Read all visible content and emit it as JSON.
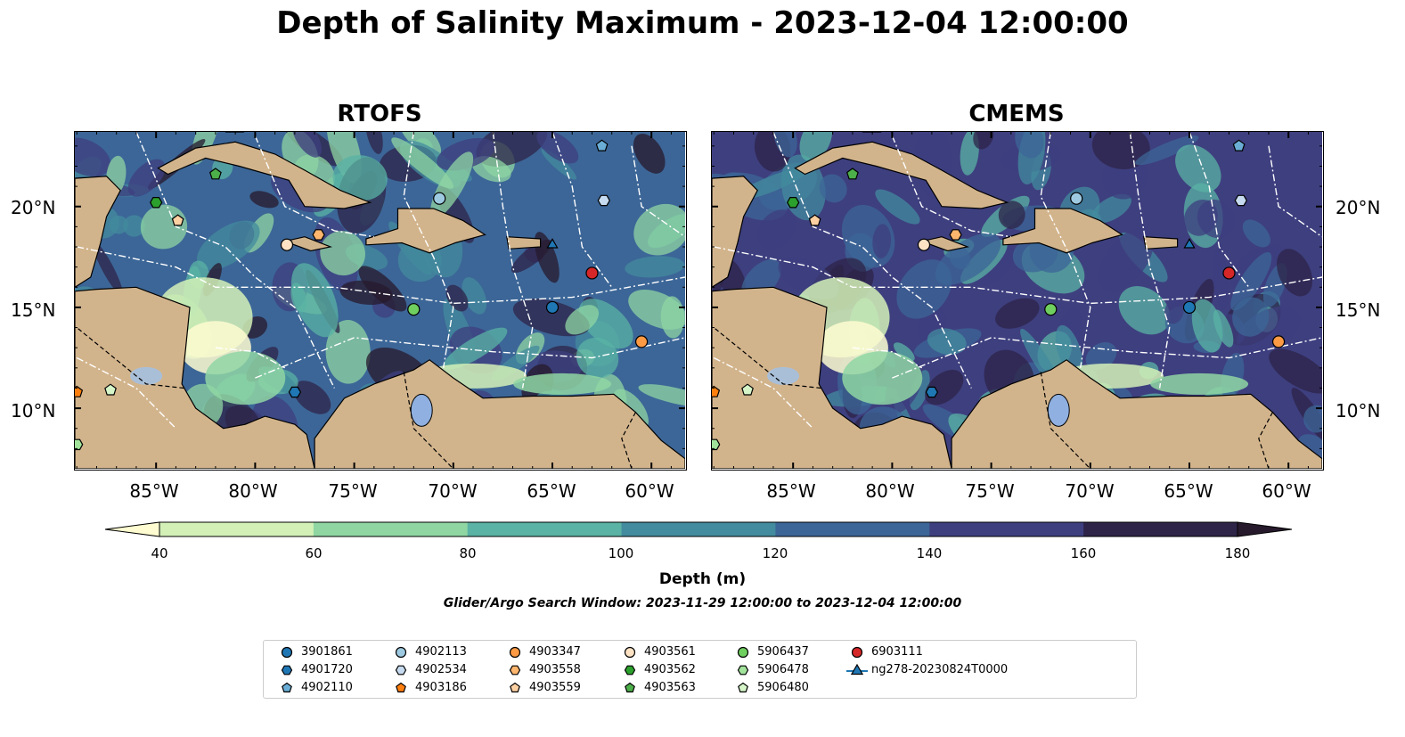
{
  "title": "Depth of Salinity Maximum - 2023-12-04 12:00:00",
  "panels": [
    {
      "title": "RTOFS"
    },
    {
      "title": "CMEMS"
    }
  ],
  "axes": {
    "lat_labels": [
      "20°N",
      "15°N",
      "10°N"
    ],
    "lon_labels": [
      "85°W",
      "80°W",
      "75°W",
      "70°W",
      "65°W",
      "60°W"
    ]
  },
  "colorbar": {
    "label": "Depth (m)",
    "ticks": [
      "40",
      "60",
      "80",
      "100",
      "120",
      "140",
      "160",
      "180"
    ],
    "colors": [
      "#fefcd0",
      "#d3f1b7",
      "#8fd6a3",
      "#5ab3a4",
      "#438b9e",
      "#3c6697",
      "#3e3f7f",
      "#2e2448",
      "#271a2c"
    ]
  },
  "search_window": "Glider/Argo Search Window: 2023-11-29 12:00:00 to 2023-12-04 12:00:00",
  "land_color": "#d2b48c",
  "legend": [
    {
      "label": "3901861",
      "marker": "circle",
      "color": "#1f77b4"
    },
    {
      "label": "4901720",
      "marker": "hexagon",
      "color": "#1f77b4"
    },
    {
      "label": "4902110",
      "marker": "pentagon",
      "color": "#6aaed6"
    },
    {
      "label": "4902113",
      "marker": "circle",
      "color": "#9ecae1"
    },
    {
      "label": "4902534",
      "marker": "hexagon",
      "color": "#c6dbef"
    },
    {
      "label": "4903186",
      "marker": "pentagon",
      "color": "#ff7f0e"
    },
    {
      "label": "4903347",
      "marker": "circle",
      "color": "#fd9a44"
    },
    {
      "label": "4903558",
      "marker": "hexagon",
      "color": "#fdb66d"
    },
    {
      "label": "4903559",
      "marker": "pentagon",
      "color": "#fdd0a2"
    },
    {
      "label": "4903561",
      "marker": "circle",
      "color": "#fde3c4"
    },
    {
      "label": "4903562",
      "marker": "hexagon",
      "color": "#2ca02c"
    },
    {
      "label": "4903563",
      "marker": "pentagon",
      "color": "#4daf4a"
    },
    {
      "label": "5906437",
      "marker": "circle",
      "color": "#6fcf5f"
    },
    {
      "label": "5906478",
      "marker": "hexagon",
      "color": "#a1e39a"
    },
    {
      "label": "5906480",
      "marker": "pentagon",
      "color": "#d5f5c8"
    },
    {
      "label": "6903111",
      "marker": "circle",
      "color": "#d62728"
    },
    {
      "label": "ng278-20230824T0000",
      "marker": "triangle-line",
      "color": "#1f77b4"
    }
  ],
  "markers": [
    {
      "id": "3901861",
      "lon": -65.0,
      "lat": 15.0,
      "shape": "circle",
      "color": "#1f77b4"
    },
    {
      "id": "4901720",
      "lon": -78.0,
      "lat": 10.8,
      "shape": "hexagon",
      "color": "#1f77b4"
    },
    {
      "id": "4902110",
      "lon": -62.5,
      "lat": 23.0,
      "shape": "pentagon",
      "color": "#6aaed6"
    },
    {
      "id": "4902113",
      "lon": -70.7,
      "lat": 20.4,
      "shape": "circle",
      "color": "#9ecae1"
    },
    {
      "id": "4902534",
      "lon": -62.4,
      "lat": 20.3,
      "shape": "hexagon",
      "color": "#c6dbef"
    },
    {
      "id": "4903186",
      "lon": -89.0,
      "lat": 10.8,
      "shape": "pentagon",
      "color": "#ff7f0e"
    },
    {
      "id": "4903347",
      "lon": -60.5,
      "lat": 13.3,
      "shape": "circle",
      "color": "#fd9a44"
    },
    {
      "id": "4903558",
      "lon": -76.8,
      "lat": 18.6,
      "shape": "hexagon",
      "color": "#fdb66d"
    },
    {
      "id": "4903559",
      "lon": -83.9,
      "lat": 19.3,
      "shape": "pentagon",
      "color": "#fdd0a2"
    },
    {
      "id": "4903561",
      "lon": -78.4,
      "lat": 18.1,
      "shape": "circle",
      "color": "#fde3c4"
    },
    {
      "id": "4903562",
      "lon": -85.0,
      "lat": 20.2,
      "shape": "hexagon",
      "color": "#2ca02c"
    },
    {
      "id": "4903563",
      "lon": -82.0,
      "lat": 21.6,
      "shape": "pentagon",
      "color": "#4daf4a"
    },
    {
      "id": "5906437",
      "lon": -72.0,
      "lat": 14.9,
      "shape": "circle",
      "color": "#6fcf5f"
    },
    {
      "id": "5906478",
      "lon": -89.0,
      "lat": 8.2,
      "shape": "hexagon",
      "color": "#a1e39a"
    },
    {
      "id": "5906480",
      "lon": -87.3,
      "lat": 10.9,
      "shape": "pentagon",
      "color": "#d5f5c8"
    },
    {
      "id": "6903111",
      "lon": -63.0,
      "lat": 16.7,
      "shape": "circle",
      "color": "#d62728"
    },
    {
      "id": "ng278-20230824T0000",
      "lon": -65.0,
      "lat": 18.1,
      "shape": "triangle",
      "color": "#1f77b4"
    }
  ]
}
